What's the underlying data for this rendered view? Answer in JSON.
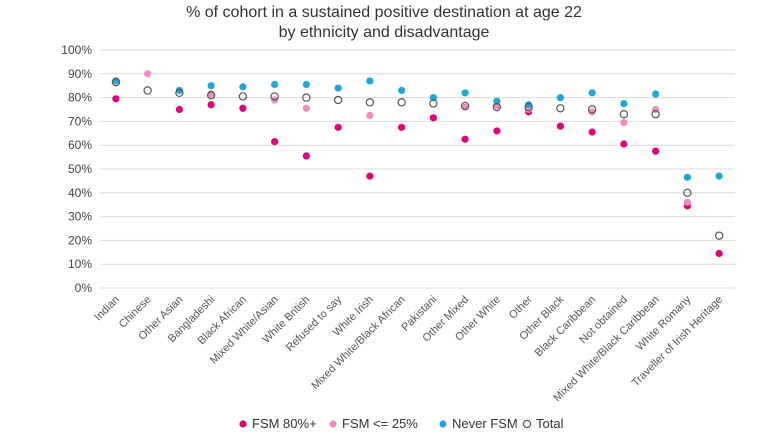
{
  "chart_data": {
    "type": "scatter",
    "title": "% of cohort in a sustained positive destination at age 22",
    "subtitle": "by ethnicity and disadvantage",
    "xlabel": "",
    "ylabel": "",
    "ylim": [
      0,
      100
    ],
    "yticks": [
      "0%",
      "10%",
      "20%",
      "30%",
      "40%",
      "50%",
      "60%",
      "70%",
      "80%",
      "90%",
      "100%"
    ],
    "grid": "horizontal",
    "legend_position": "bottom",
    "categories": [
      "Indian",
      "Chinese",
      "Other Asian",
      "Bangladeshi",
      "Black African",
      "Mixed White/Asian",
      "White British",
      "Refused to say",
      "White Irish",
      "Mixed White/Black African",
      "Pakistani",
      "Other Mixed",
      "Other White",
      "Other",
      "Other Black",
      "Black Caribbean",
      "Not obtained",
      "Mixed White/Black Caribbean",
      "White Romany",
      "Traveller of Irish Heritage"
    ],
    "series": [
      {
        "name": "FSM 80%+",
        "color": "#e2007a",
        "marker": "filled",
        "values": [
          79.5,
          null,
          75,
          77,
          75.5,
          61.5,
          55.5,
          67.5,
          47,
          67.5,
          71.5,
          62.5,
          66,
          74,
          68,
          65.5,
          60.5,
          57.5,
          34.5,
          14.5
        ]
      },
      {
        "name": "FSM <= 25%",
        "color": "#f08cc0",
        "marker": "filled",
        "values": [
          null,
          90,
          null,
          81.5,
          null,
          79,
          75.5,
          null,
          72.5,
          null,
          null,
          76,
          76.5,
          75,
          null,
          74,
          69.5,
          75,
          36,
          null
        ]
      },
      {
        "name": "Never FSM",
        "color": "#1fa7d8",
        "marker": "filled",
        "values": [
          87,
          null,
          83,
          85,
          84.5,
          85.5,
          85.5,
          84,
          87,
          83,
          80,
          82,
          78.5,
          77,
          80,
          82,
          77.5,
          81.5,
          46.5,
          47
        ]
      },
      {
        "name": "Total",
        "color": "#555555",
        "marker": "hollow",
        "values": [
          86.5,
          83,
          82,
          81,
          80.5,
          80.5,
          80,
          79,
          78,
          78,
          77.5,
          76.5,
          76,
          76,
          75.5,
          75,
          73,
          73,
          40,
          22
        ]
      }
    ]
  }
}
